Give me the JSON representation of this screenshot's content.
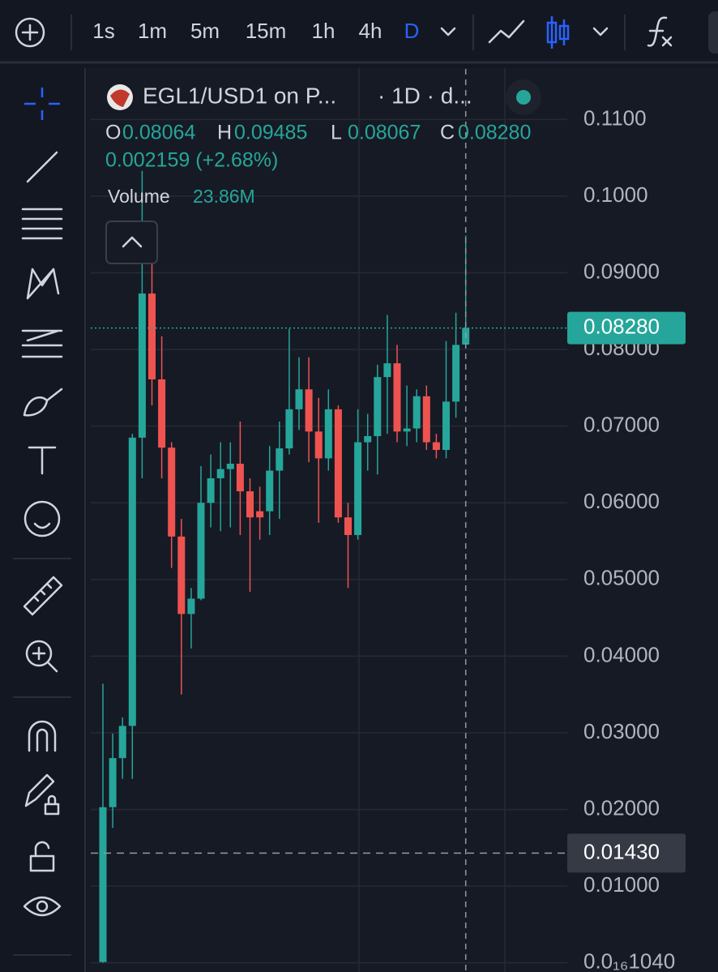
{
  "toolbar": {
    "intervals": [
      "1s",
      "1m",
      "5m",
      "15m",
      "1h",
      "4h"
    ],
    "active_interval": "D"
  },
  "chart_data": {
    "type": "candlestick",
    "title": "EGL1/USD1 on P...",
    "subtitle": "· 1D · d...",
    "ohlc_labels": [
      "O",
      "H",
      "L",
      "C"
    ],
    "ohlc_values": [
      "0.08064",
      "0.09485",
      "0.08067",
      "0.08280"
    ],
    "change": "0.002159 (+2.68%)",
    "volume_label": "Volume",
    "volume_value": "23.86M",
    "up_color": "#26a69a",
    "down_color": "#ef5350",
    "open": [
      0.0001,
      0.0203,
      0.0267,
      0.0309,
      0.0685,
      0.0873,
      0.0761,
      0.0672,
      0.0556,
      0.0455,
      0.0475,
      0.06,
      0.0632,
      0.0644,
      0.0651,
      0.0615,
      0.0589,
      0.0589,
      0.0642,
      0.0671,
      0.0722,
      0.0748,
      0.0693,
      0.0658,
      0.0722,
      0.0581,
      0.0558,
      0.0679,
      0.0687,
      0.0764,
      0.0782,
      0.0693,
      0.0697,
      0.0739,
      0.0679,
      0.0669,
      0.0732,
      0.08064
    ],
    "high": [
      0.0364,
      0.0299,
      0.032,
      0.069,
      0.1033,
      0.0917,
      0.0817,
      0.0679,
      0.0579,
      0.0489,
      0.0648,
      0.0663,
      0.0679,
      0.0679,
      0.0706,
      0.0632,
      0.0621,
      0.0674,
      0.0706,
      0.0827,
      0.079,
      0.079,
      0.0737,
      0.0748,
      0.0727,
      0.06,
      0.0722,
      0.0716,
      0.078,
      0.0845,
      0.0806,
      0.0753,
      0.0748,
      0.0753,
      0.069,
      0.0811,
      0.0848,
      0.09485
    ],
    "low": [
      0.0,
      0.0176,
      0.024,
      0.024,
      0.0632,
      0.0727,
      0.0632,
      0.0515,
      0.035,
      0.041,
      0.0473,
      0.0568,
      0.0563,
      0.0568,
      0.0558,
      0.0484,
      0.0552,
      0.0558,
      0.0579,
      0.0663,
      0.0695,
      0.0653,
      0.0574,
      0.0642,
      0.0574,
      0.0489,
      0.0552,
      0.0642,
      0.0637,
      0.069,
      0.0679,
      0.0674,
      0.0679,
      0.0669,
      0.0658,
      0.0658,
      0.0711,
      0.08067
    ],
    "close": [
      0.0203,
      0.0267,
      0.0309,
      0.0685,
      0.0873,
      0.0761,
      0.0672,
      0.0556,
      0.0455,
      0.0475,
      0.06,
      0.0632,
      0.0644,
      0.0651,
      0.0615,
      0.0581,
      0.0581,
      0.0642,
      0.0671,
      0.0722,
      0.0748,
      0.0693,
      0.0658,
      0.0722,
      0.0581,
      0.0558,
      0.0679,
      0.0687,
      0.0764,
      0.0782,
      0.0693,
      0.0697,
      0.0739,
      0.0679,
      0.0669,
      0.0732,
      0.0806,
      0.0828
    ],
    "ylim": [
      -0.0012,
      0.1166
    ],
    "yticks": [
      {
        "value": 0.11,
        "label": "0.1100"
      },
      {
        "value": 0.1,
        "label": "0.1000"
      },
      {
        "value": 0.09,
        "label": "0.09000"
      },
      {
        "value": 0.08,
        "label": "0.08000"
      },
      {
        "value": 0.07,
        "label": "0.07000"
      },
      {
        "value": 0.06,
        "label": "0.06000"
      },
      {
        "value": 0.05,
        "label": "0.05000"
      },
      {
        "value": 0.04,
        "label": "0.04000"
      },
      {
        "value": 0.03,
        "label": "0.03000"
      },
      {
        "value": 0.02,
        "label": "0.02000"
      },
      {
        "value": 0.01,
        "label": "0.01000"
      },
      {
        "value": 1.04e-17,
        "label": "0.0₁₆1040"
      }
    ],
    "grid": true,
    "last_price": {
      "value": 0.0828,
      "label": "0.08280"
    },
    "crosshair_price": {
      "value": 0.0143,
      "label": "0.01430"
    }
  }
}
